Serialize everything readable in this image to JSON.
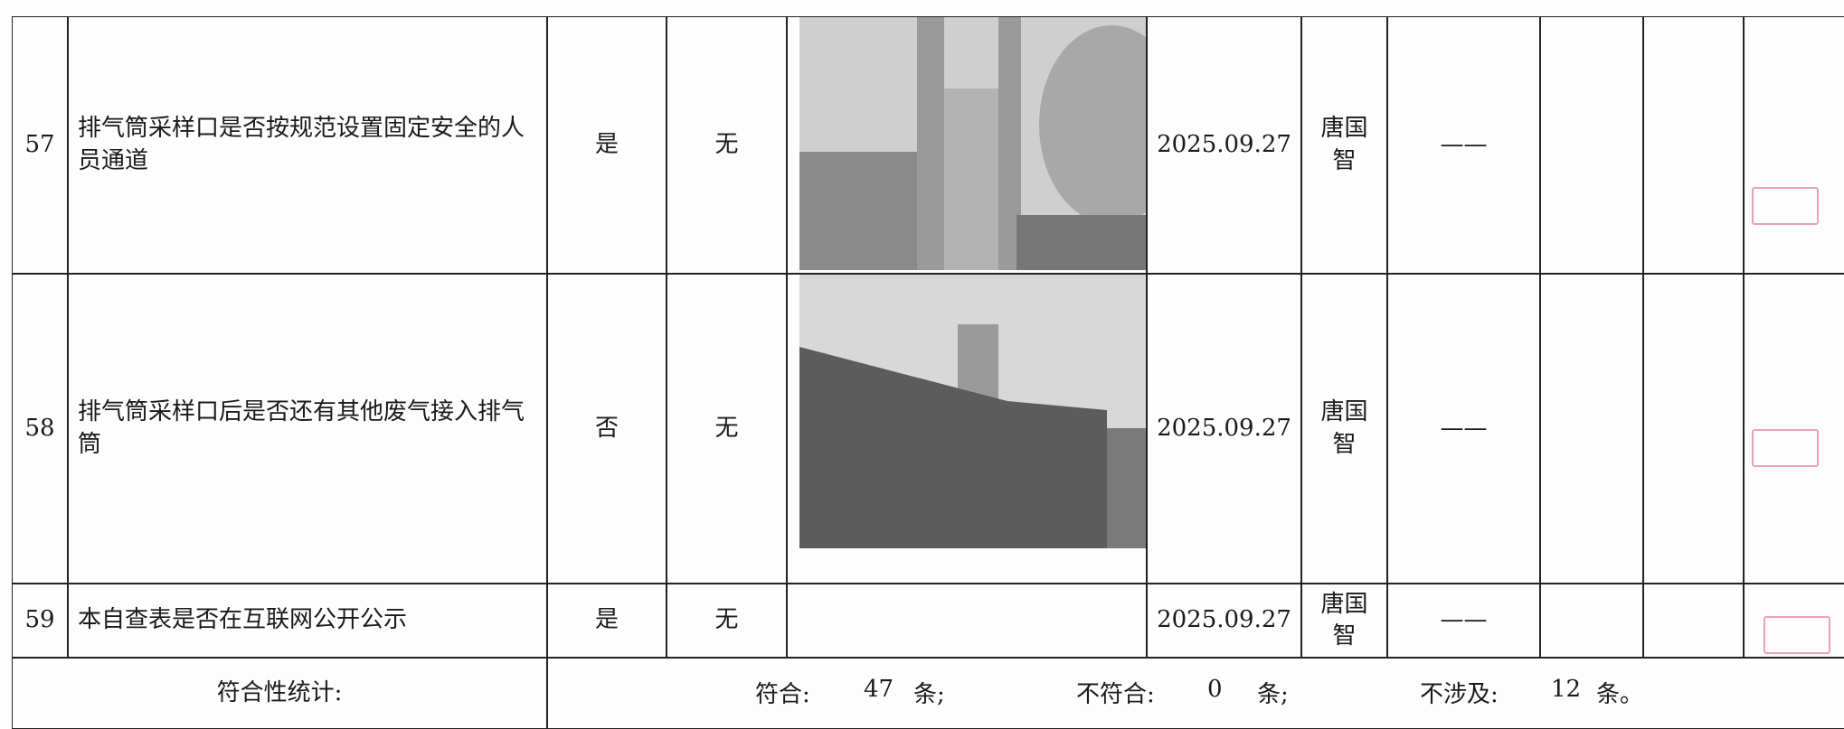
{
  "table": {
    "rows": [
      [
        "57",
        "排气筒采样口是否按规范设置固定安全的人员通道",
        "是",
        "无",
        "2025.09.27",
        "唐国智",
        "——"
      ],
      [
        "58",
        "排气筒采样口后是否还有其他废气接入排气筒",
        "否",
        "无",
        "2025.09.27",
        "唐国智",
        "——"
      ],
      [
        "59",
        "本自查表是否在互联网公开公示",
        "是",
        "无",
        "2025.09.27",
        "唐国智",
        "——"
      ]
    ],
    "summary": {
      "label": "符合性统计:",
      "items": [
        {
          "name": "符合:",
          "count": "47",
          "unit": "条;"
        },
        {
          "name": "不符合:",
          "count": "0",
          "unit": "条;"
        },
        {
          "name": "不涉及:",
          "count": "12",
          "unit": "条。"
        }
      ]
    }
  }
}
